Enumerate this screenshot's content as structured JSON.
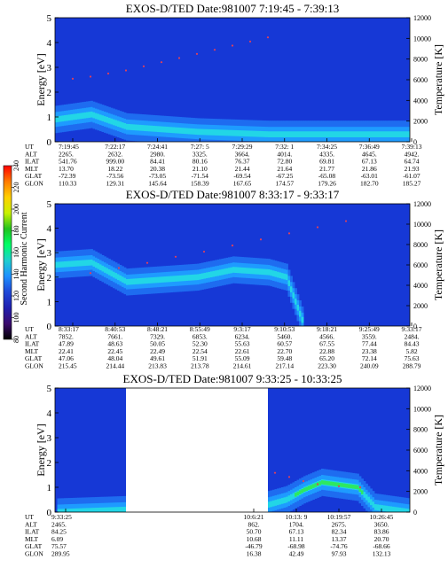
{
  "chart_data": [
    {
      "type": "heatmap",
      "title": "EXOS-D/TED   Date:981007  7:19:45 - 7:39:13",
      "ylabel": "Energy [eV]",
      "y2label": "Temperature [K]",
      "ylim": [
        0,
        5
      ],
      "yticks": [
        "0",
        "1",
        "2",
        "3",
        "4",
        "5"
      ],
      "y2lim": [
        0,
        12000
      ],
      "y2ticks": [
        "0",
        "2000",
        "4000",
        "6000",
        "8000",
        "10000",
        "12000"
      ],
      "row_labels": [
        "UT",
        "ALT",
        "ILAT",
        "MLT",
        "GLAT",
        "GLON"
      ],
      "columns": [
        [
          "7:19:45",
          "2265.",
          "541.76",
          "13.70",
          "-72.39",
          "110.33"
        ],
        [
          "7:22:17",
          "2632.",
          "999.00",
          "18.22",
          "-73.56",
          "129.31"
        ],
        [
          "7:24:41",
          "2980.",
          "84.41",
          "20.38",
          "-73.05",
          "145.64"
        ],
        [
          "7:27: 5",
          "3325.",
          "80.16",
          "21.10",
          "-71.54",
          "158.39"
        ],
        [
          "7:29:29",
          "3664.",
          "76.37",
          "21.44",
          "-69.54",
          "167.65"
        ],
        [
          "7:32: 1",
          "4014.",
          "72.80",
          "21.64",
          "-67.25",
          "174.57"
        ],
        [
          "7:34:25",
          "4335.",
          "69.81",
          "21.77",
          "-65.08",
          "179.26"
        ],
        [
          "7:36:49",
          "4645.",
          "67.13",
          "21.86",
          "-63.01",
          "182.70"
        ],
        [
          "7:39:13",
          "4942.",
          "64.74",
          "21.93",
          "-61.07",
          "185.27"
        ]
      ],
      "peak_profile": [
        [
          0,
          0.9
        ],
        [
          0.1,
          1.1
        ],
        [
          0.2,
          0.6
        ],
        [
          0.3,
          0.5
        ],
        [
          0.4,
          0.4
        ],
        [
          0.5,
          0.35
        ],
        [
          0.6,
          0.3
        ],
        [
          0.7,
          0.3
        ],
        [
          0.8,
          0.3
        ],
        [
          0.9,
          0.3
        ],
        [
          1,
          0.3
        ]
      ],
      "temperature_points": [
        [
          0.05,
          6100
        ],
        [
          0.1,
          6300
        ],
        [
          0.15,
          6600
        ],
        [
          0.2,
          6900
        ],
        [
          0.25,
          7300
        ],
        [
          0.3,
          7700
        ],
        [
          0.35,
          8100
        ],
        [
          0.4,
          8500
        ],
        [
          0.45,
          8900
        ],
        [
          0.5,
          9300
        ],
        [
          0.55,
          9700
        ],
        [
          0.6,
          10100
        ]
      ]
    },
    {
      "type": "heatmap",
      "title": "EXOS-D/TED   Date:981007  8:33:17 - 9:33:17",
      "ylabel": "Energy [eV]",
      "y2label": "Temperature [K]",
      "ylim": [
        0,
        5
      ],
      "yticks": [
        "0",
        "1",
        "2",
        "3",
        "4",
        "5"
      ],
      "y2lim": [
        0,
        12000
      ],
      "y2ticks": [
        "0",
        "2000",
        "4000",
        "6000",
        "8000",
        "10000",
        "12000"
      ],
      "row_labels": [
        "UT",
        "ALT",
        "ILAT",
        "MLT",
        "GLAT",
        "GLON"
      ],
      "columns": [
        [
          "8:33:17",
          "7852.",
          "47.89",
          "22.41",
          "47.06",
          "215.45"
        ],
        [
          "8:40:53",
          "7661.",
          "48.63",
          "22.45",
          "48.04",
          "214.44"
        ],
        [
          "8:48:21",
          "7329.",
          "50.05",
          "22.49",
          "49.61",
          "213.83"
        ],
        [
          "8:55:49",
          "6853.",
          "52.30",
          "22.54",
          "51.91",
          "213.78"
        ],
        [
          "9:3:17",
          "6234.",
          "55.63",
          "22.61",
          "55.09",
          "214.61"
        ],
        [
          "9:10:53",
          "5460.",
          "60.57",
          "22.70",
          "59.48",
          "217.14"
        ],
        [
          "9:18:21",
          "4566.",
          "67.55",
          "22.88",
          "65.20",
          "223.30"
        ],
        [
          "9:25:49",
          "3559.",
          "77.44",
          "23.38",
          "72.14",
          "240.09"
        ],
        [
          "9:33:17",
          "2484.",
          "84.43",
          "5.82",
          "75.63",
          "288.79"
        ]
      ],
      "peak_profile": [
        [
          0,
          2.5
        ],
        [
          0.1,
          2.6
        ],
        [
          0.2,
          1.8
        ],
        [
          0.3,
          1.9
        ],
        [
          0.4,
          2.0
        ],
        [
          0.5,
          2.3
        ],
        [
          0.6,
          2.2
        ],
        [
          0.65,
          2.0
        ],
        [
          0.7,
          0
        ],
        [
          1,
          0
        ]
      ],
      "temperature_points": [
        [
          0.1,
          5200
        ],
        [
          0.18,
          5700
        ],
        [
          0.26,
          6200
        ],
        [
          0.34,
          6800
        ],
        [
          0.42,
          7300
        ],
        [
          0.5,
          7900
        ],
        [
          0.58,
          8500
        ],
        [
          0.66,
          9100
        ],
        [
          0.74,
          9700
        ],
        [
          0.82,
          10300
        ]
      ]
    },
    {
      "type": "heatmap",
      "title": "EXOS-D/TED   Date:981007  9:33:25 - 10:33:25",
      "ylabel": "Energy [eV]",
      "y2label": "Temperature [K]",
      "ylim": [
        0,
        5
      ],
      "yticks": [
        "0",
        "1",
        "2",
        "3",
        "4",
        "5"
      ],
      "y2lim": [
        0,
        12000
      ],
      "y2ticks": [
        "0",
        "2000",
        "4000",
        "6000",
        "8000",
        "10000",
        "12000"
      ],
      "row_labels": [
        "UT",
        "ALT",
        "ILAT",
        "MLT",
        "GLAT",
        "GLON"
      ],
      "columns": [
        [
          "9:33:25",
          "2465.",
          "84.25",
          "6.09",
          "75.57",
          "289.95"
        ],
        [
          "10:6:21",
          "862.",
          "50.70",
          "10.68",
          "-46.79",
          "16.38"
        ],
        [
          "10:13: 9",
          "1704.",
          "67.13",
          "11.11",
          "-68.98",
          "42.49"
        ],
        [
          "10:19:57",
          "2675.",
          "82.34",
          "13.37",
          "-74.76",
          "97.93"
        ],
        [
          "10:26:45",
          "3650.",
          "83.86",
          "20.70",
          "-68.66",
          "132.13"
        ]
      ],
      "data_gap": [
        0.2,
        0.6
      ],
      "peak_profile": [
        [
          0,
          0
        ],
        [
          0.6,
          0.3
        ],
        [
          0.65,
          0.5
        ],
        [
          0.7,
          0.9
        ],
        [
          0.75,
          1.2
        ],
        [
          0.8,
          1.1
        ],
        [
          0.85,
          1.0
        ],
        [
          0.9,
          0.2
        ],
        [
          1,
          0
        ]
      ],
      "temperature_points": [
        [
          0.62,
          3800
        ],
        [
          0.66,
          3400
        ],
        [
          0.7,
          3000
        ],
        [
          0.74,
          2700
        ],
        [
          0.8,
          2500
        ],
        [
          0.86,
          2400
        ]
      ]
    }
  ],
  "colorbar": {
    "label": "Second Harmonic Current",
    "ticks": [
      "80",
      "100",
      "120",
      "140",
      "160",
      "180",
      "200",
      "220",
      "240"
    ],
    "colors": [
      "#000000",
      "#3b0a6e",
      "#1f1fb0",
      "#1f48d8",
      "#1e90ff",
      "#1ecfcf",
      "#00ff66",
      "#22c21e",
      "#c9f200",
      "#ffd000",
      "#ff7a00",
      "#ff0000"
    ]
  }
}
